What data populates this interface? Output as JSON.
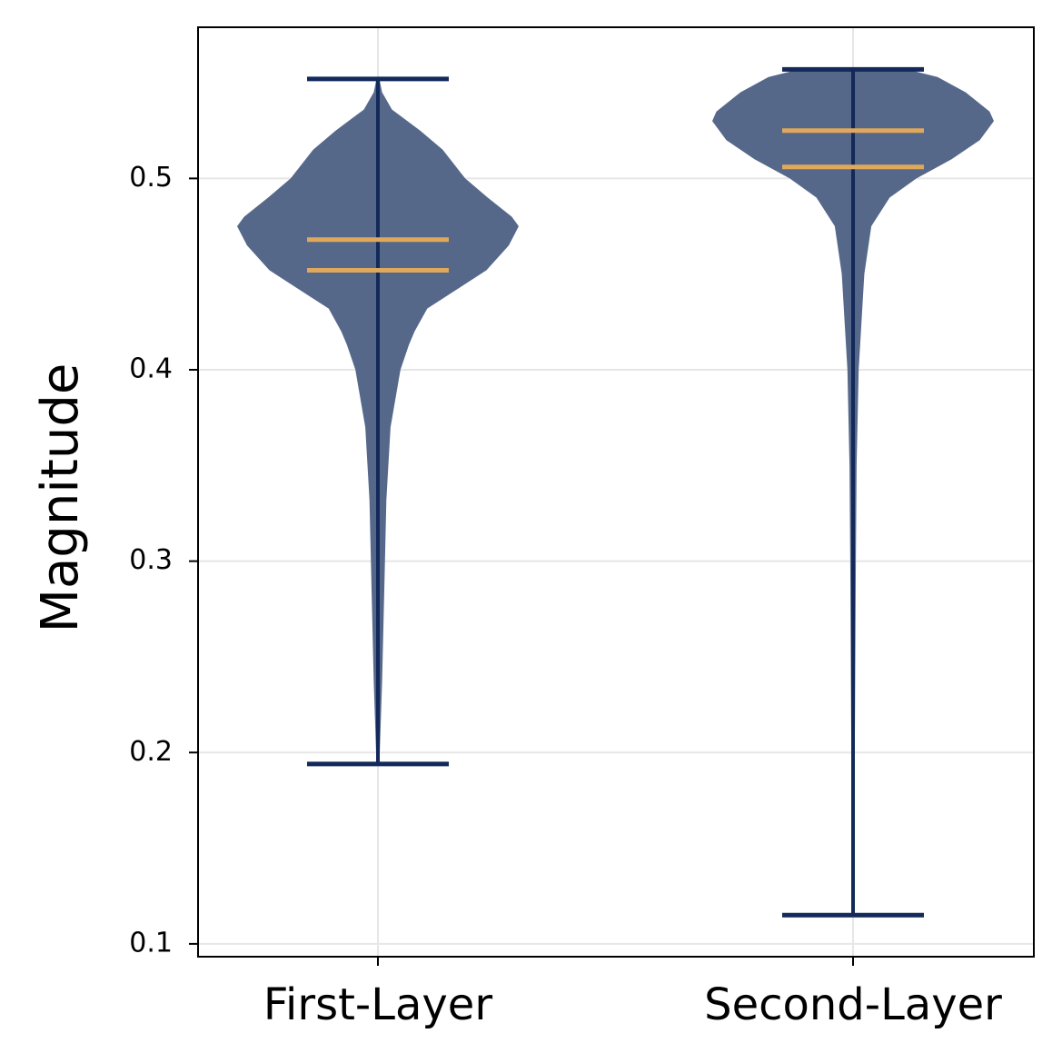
{
  "chart_data": {
    "type": "violin",
    "ylabel": "Magnitude",
    "categories": [
      "First-Layer",
      "Second-Layer"
    ],
    "mins": [
      0.194,
      0.115
    ],
    "maxs": [
      0.552,
      0.557
    ],
    "means": [
      0.468,
      0.525
    ],
    "medians": [
      0.452,
      0.506
    ],
    "kde": [
      {
        "y": [
          0.552,
          0.545,
          0.536,
          0.525,
          0.515,
          0.5,
          0.49,
          0.48,
          0.475,
          0.465,
          0.452,
          0.442,
          0.432,
          0.42,
          0.413,
          0.4,
          0.37,
          0.332,
          0.285,
          0.237,
          0.194
        ],
        "density": [
          0.01,
          0.03,
          0.1,
          0.3,
          0.46,
          0.62,
          0.78,
          0.95,
          1.0,
          0.93,
          0.77,
          0.56,
          0.35,
          0.26,
          0.22,
          0.16,
          0.09,
          0.06,
          0.045,
          0.03,
          0.01
        ]
      },
      {
        "y": [
          0.557,
          0.553,
          0.545,
          0.535,
          0.53,
          0.52,
          0.51,
          0.5,
          0.49,
          0.475,
          0.45,
          0.4,
          0.35,
          0.3,
          0.2,
          0.115
        ],
        "density": [
          0.38,
          0.6,
          0.8,
          0.97,
          1.0,
          0.9,
          0.7,
          0.45,
          0.26,
          0.13,
          0.08,
          0.04,
          0.025,
          0.02,
          0.012,
          0.006
        ]
      }
    ],
    "body_color": "#56688a",
    "line_color": "#12295a",
    "center_color": "#e0a85a",
    "ylim": [
      0.0933,
      0.579
    ],
    "yticks": [
      0.1,
      0.2,
      0.3,
      0.4,
      0.5
    ],
    "grid": true
  }
}
